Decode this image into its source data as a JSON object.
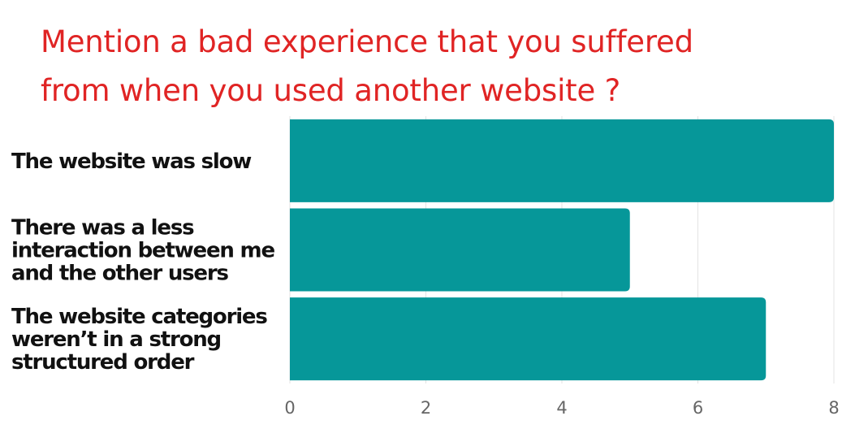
{
  "title_lines": [
    "Mention a bad experience that you suffered",
    "from when you used another website ?"
  ],
  "chart_data": {
    "type": "bar",
    "orientation": "horizontal",
    "title": "Mention a bad experience that you suffered from when you used another website ?",
    "categories": [
      [
        "The website was slow"
      ],
      [
        "There was a less",
        "interaction between me",
        "and the other users"
      ],
      [
        "The website categories",
        "weren’t in a strong",
        "structured order"
      ]
    ],
    "values": [
      8,
      5,
      7
    ],
    "xlim": [
      0,
      8
    ],
    "xticks": [
      0,
      2,
      4,
      6,
      8
    ],
    "grid": true,
    "legend": "none",
    "bar_color": "#069799",
    "title_color": "#e02424"
  }
}
